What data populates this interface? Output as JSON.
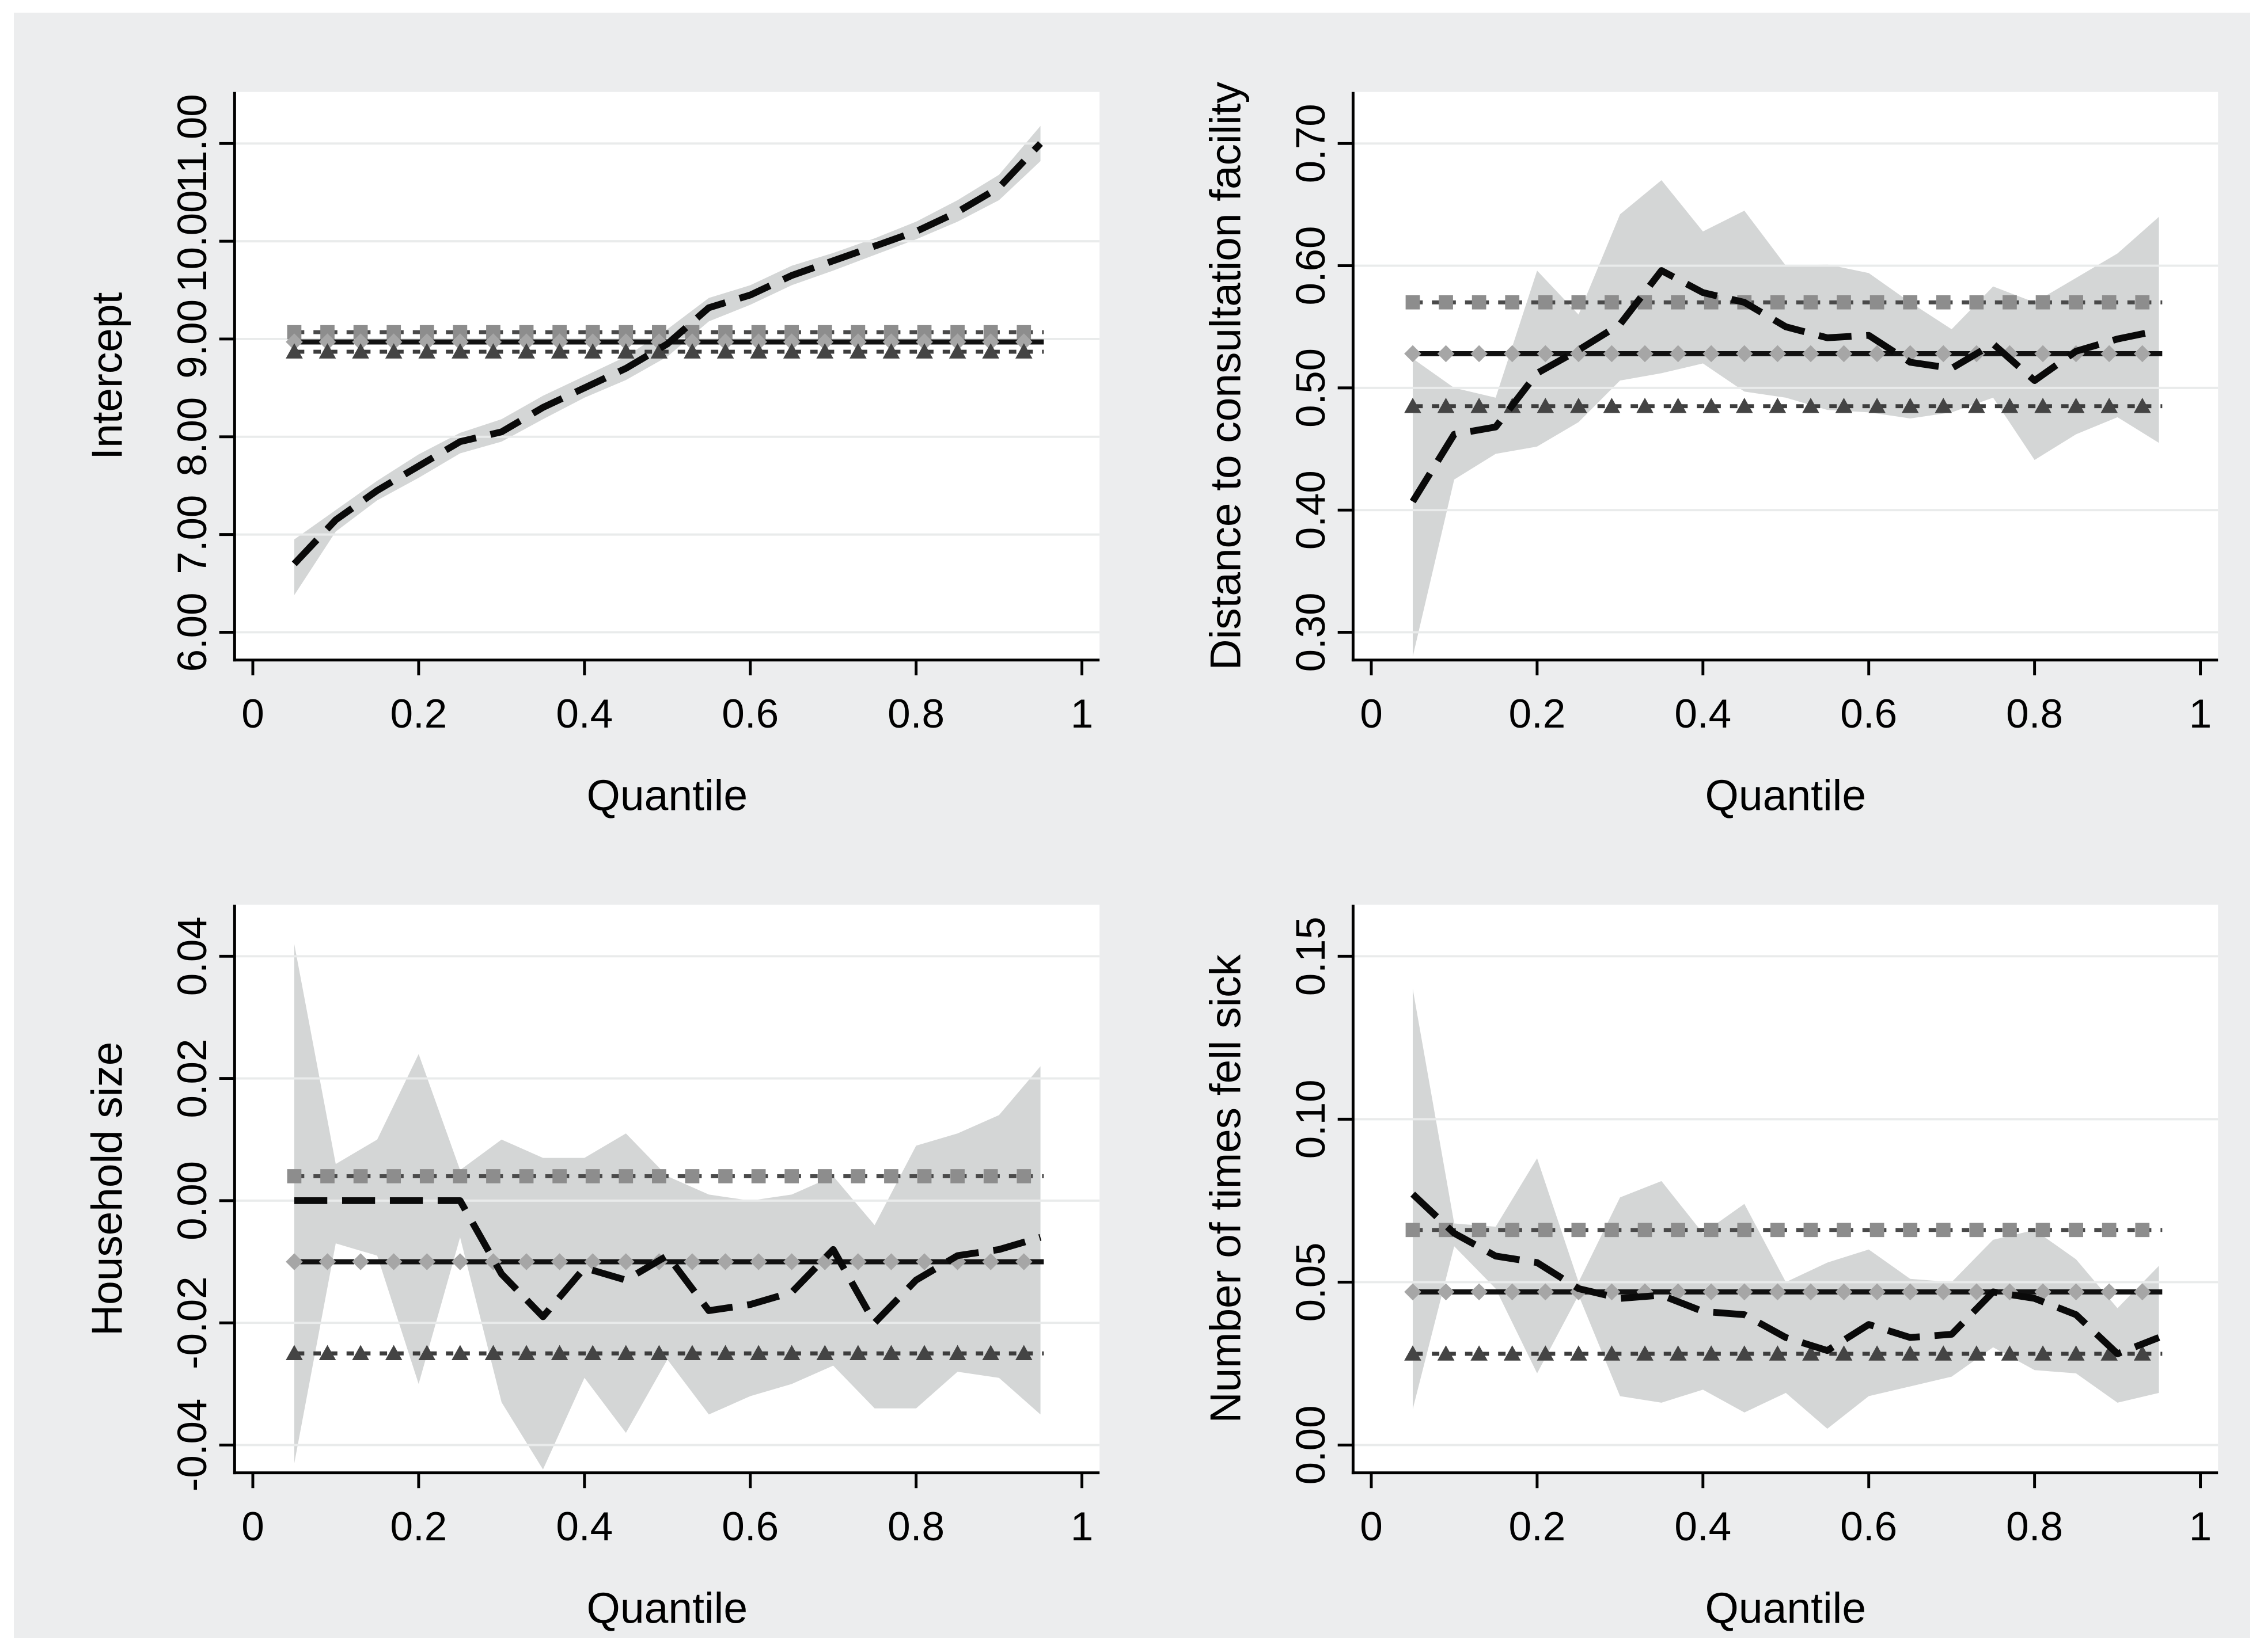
{
  "figure": {
    "background_color": "#ecedee",
    "plot_background_color": "#ffffff",
    "gridline_color": "#e9ebeb",
    "band_color": "#d4d6d6",
    "main_line_color": "#0a0a0a",
    "ols_dash_color": "#111111",
    "ols_marker_color": "#a6a6a6",
    "upper_ci_line_color": "#4a4a4a",
    "upper_ci_marker_color": "#8d8d8d",
    "lower_ci_line_color": "#3d3d3d",
    "lower_ci_marker_color": "#444444",
    "axis_color": "#000000"
  },
  "chart_data": [
    {
      "type": "line",
      "ylabel": "Intercept",
      "xlabel": "Quantile",
      "legend": "none",
      "grid": "horizontal",
      "xlim": [
        -0.022,
        1.022
      ],
      "ylim": [
        5.72,
        11.53
      ],
      "xticks": [
        {
          "v": 0,
          "label": "0"
        },
        {
          "v": 0.2,
          "label": "0.2"
        },
        {
          "v": 0.4,
          "label": "0.4"
        },
        {
          "v": 0.6,
          "label": "0.6"
        },
        {
          "v": 0.8,
          "label": "0.8"
        },
        {
          "v": 1,
          "label": "1"
        }
      ],
      "yticks": [
        {
          "v": 6,
          "label": "6.00"
        },
        {
          "v": 7,
          "label": "7.00"
        },
        {
          "v": 8,
          "label": "8.00"
        },
        {
          "v": 9,
          "label": "9.00"
        },
        {
          "v": 10,
          "label": "10.00"
        },
        {
          "v": 11,
          "label": "11.00"
        }
      ],
      "x": [
        0.05,
        0.1,
        0.15,
        0.2,
        0.25,
        0.3,
        0.35,
        0.4,
        0.45,
        0.5,
        0.55,
        0.6,
        0.65,
        0.7,
        0.75,
        0.8,
        0.85,
        0.9,
        0.95
      ],
      "quantile_estimate": [
        6.7,
        7.15,
        7.45,
        7.7,
        7.95,
        8.05,
        8.3,
        8.5,
        8.7,
        8.95,
        9.32,
        9.45,
        9.65,
        9.8,
        9.95,
        10.1,
        10.3,
        10.55,
        11.0
      ],
      "ci_upper": [
        6.95,
        7.25,
        7.55,
        7.82,
        8.04,
        8.18,
        8.42,
        8.62,
        8.82,
        9.1,
        9.42,
        9.55,
        9.75,
        9.88,
        10.03,
        10.2,
        10.42,
        10.68,
        11.18
      ],
      "ci_lower": [
        6.38,
        7.03,
        7.35,
        7.58,
        7.83,
        7.95,
        8.18,
        8.4,
        8.58,
        8.82,
        9.18,
        9.35,
        9.55,
        9.7,
        9.86,
        10.02,
        10.2,
        10.42,
        10.82
      ],
      "ols_estimate": 8.97,
      "ols_ci_upper": 9.07,
      "ols_ci_lower": 8.87
    },
    {
      "type": "line",
      "ylabel": "Distance to consultation facility",
      "xlabel": "Quantile",
      "legend": "none",
      "grid": "horizontal",
      "xlim": [
        -0.022,
        1.022
      ],
      "ylim": [
        0.277,
        0.742
      ],
      "xticks": [
        {
          "v": 0,
          "label": "0"
        },
        {
          "v": 0.2,
          "label": "0.2"
        },
        {
          "v": 0.4,
          "label": "0.4"
        },
        {
          "v": 0.6,
          "label": "0.6"
        },
        {
          "v": 0.8,
          "label": "0.8"
        },
        {
          "v": 1,
          "label": "1"
        }
      ],
      "yticks": [
        {
          "v": 0.3,
          "label": "0.30"
        },
        {
          "v": 0.4,
          "label": "0.40"
        },
        {
          "v": 0.5,
          "label": "0.50"
        },
        {
          "v": 0.6,
          "label": "0.60"
        },
        {
          "v": 0.7,
          "label": "0.70"
        }
      ],
      "x": [
        0.05,
        0.1,
        0.15,
        0.2,
        0.25,
        0.3,
        0.35,
        0.4,
        0.45,
        0.5,
        0.55,
        0.6,
        0.65,
        0.7,
        0.75,
        0.8,
        0.85,
        0.9,
        0.95
      ],
      "quantile_estimate": [
        0.407,
        0.462,
        0.468,
        0.512,
        0.531,
        0.552,
        0.596,
        0.578,
        0.57,
        0.55,
        0.541,
        0.543,
        0.521,
        0.516,
        0.536,
        0.506,
        0.53,
        0.54,
        0.547
      ],
      "ci_upper": [
        0.524,
        0.5,
        0.492,
        0.596,
        0.56,
        0.642,
        0.67,
        0.628,
        0.645,
        0.6,
        0.601,
        0.594,
        0.57,
        0.548,
        0.583,
        0.57,
        0.59,
        0.61,
        0.64
      ],
      "ci_lower": [
        0.28,
        0.425,
        0.446,
        0.452,
        0.472,
        0.506,
        0.512,
        0.52,
        0.497,
        0.492,
        0.482,
        0.48,
        0.475,
        0.48,
        0.492,
        0.441,
        0.462,
        0.476,
        0.455
      ],
      "ols_estimate": 0.528,
      "ols_ci_upper": 0.57,
      "ols_ci_lower": 0.485
    },
    {
      "type": "line",
      "ylabel": "Household size",
      "xlabel": "Quantile",
      "legend": "none",
      "grid": "horizontal",
      "xlim": [
        -0.022,
        1.022
      ],
      "ylim": [
        -0.0445,
        0.0485
      ],
      "xticks": [
        {
          "v": 0,
          "label": "0"
        },
        {
          "v": 0.2,
          "label": "0.2"
        },
        {
          "v": 0.4,
          "label": "0.4"
        },
        {
          "v": 0.6,
          "label": "0.6"
        },
        {
          "v": 0.8,
          "label": "0.8"
        },
        {
          "v": 1,
          "label": "1"
        }
      ],
      "yticks": [
        {
          "v": -0.04,
          "label": "-0.04"
        },
        {
          "v": -0.02,
          "label": "-0.02"
        },
        {
          "v": 0.0,
          "label": "0.00"
        },
        {
          "v": 0.02,
          "label": "0.02"
        },
        {
          "v": 0.04,
          "label": "0.04"
        }
      ],
      "x": [
        0.05,
        0.1,
        0.15,
        0.2,
        0.25,
        0.3,
        0.35,
        0.4,
        0.45,
        0.5,
        0.55,
        0.6,
        0.65,
        0.7,
        0.75,
        0.8,
        0.85,
        0.9,
        0.95
      ],
      "quantile_estimate": [
        0.0,
        0.0,
        0.0,
        0.0,
        0.0,
        -0.012,
        -0.019,
        -0.011,
        -0.013,
        -0.009,
        -0.018,
        -0.017,
        -0.015,
        -0.008,
        -0.02,
        -0.013,
        -0.009,
        -0.008,
        -0.006
      ],
      "ci_upper": [
        0.042,
        0.006,
        0.01,
        0.024,
        0.005,
        0.01,
        0.007,
        0.007,
        0.011,
        0.004,
        0.001,
        0.0,
        0.001,
        0.004,
        -0.004,
        0.009,
        0.011,
        0.014,
        0.022
      ],
      "ci_lower": [
        -0.043,
        -0.007,
        -0.009,
        -0.03,
        -0.006,
        -0.033,
        -0.044,
        -0.029,
        -0.038,
        -0.026,
        -0.035,
        -0.032,
        -0.03,
        -0.027,
        -0.034,
        -0.034,
        -0.028,
        -0.029,
        -0.035
      ],
      "ols_estimate": -0.01,
      "ols_ci_upper": 0.004,
      "ols_ci_lower": -0.025
    },
    {
      "type": "line",
      "ylabel": "Number of times fell sick",
      "xlabel": "Quantile",
      "legend": "none",
      "grid": "horizontal",
      "xlim": [
        -0.022,
        1.022
      ],
      "ylim": [
        -0.0085,
        0.166
      ],
      "xticks": [
        {
          "v": 0,
          "label": "0"
        },
        {
          "v": 0.2,
          "label": "0.2"
        },
        {
          "v": 0.4,
          "label": "0.4"
        },
        {
          "v": 0.6,
          "label": "0.6"
        },
        {
          "v": 0.8,
          "label": "0.8"
        },
        {
          "v": 1,
          "label": "1"
        }
      ],
      "yticks": [
        {
          "v": 0.0,
          "label": "0.00"
        },
        {
          "v": 0.05,
          "label": "0.05"
        },
        {
          "v": 0.1,
          "label": "0.10"
        },
        {
          "v": 0.15,
          "label": "0.15"
        }
      ],
      "x": [
        0.05,
        0.1,
        0.15,
        0.2,
        0.25,
        0.3,
        0.35,
        0.4,
        0.45,
        0.5,
        0.55,
        0.6,
        0.65,
        0.7,
        0.75,
        0.8,
        0.85,
        0.9,
        0.95
      ],
      "quantile_estimate": [
        0.077,
        0.065,
        0.058,
        0.056,
        0.048,
        0.045,
        0.046,
        0.041,
        0.04,
        0.033,
        0.029,
        0.037,
        0.033,
        0.034,
        0.047,
        0.045,
        0.04,
        0.028,
        0.033
      ],
      "ci_upper": [
        0.14,
        0.068,
        0.067,
        0.088,
        0.05,
        0.076,
        0.081,
        0.065,
        0.074,
        0.05,
        0.056,
        0.06,
        0.051,
        0.05,
        0.063,
        0.066,
        0.057,
        0.042,
        0.055
      ],
      "ci_lower": [
        0.011,
        0.061,
        0.048,
        0.022,
        0.046,
        0.015,
        0.013,
        0.017,
        0.01,
        0.016,
        0.005,
        0.015,
        0.018,
        0.021,
        0.03,
        0.023,
        0.022,
        0.013,
        0.016
      ],
      "ols_estimate": 0.047,
      "ols_ci_upper": 0.066,
      "ols_ci_lower": 0.028
    }
  ]
}
